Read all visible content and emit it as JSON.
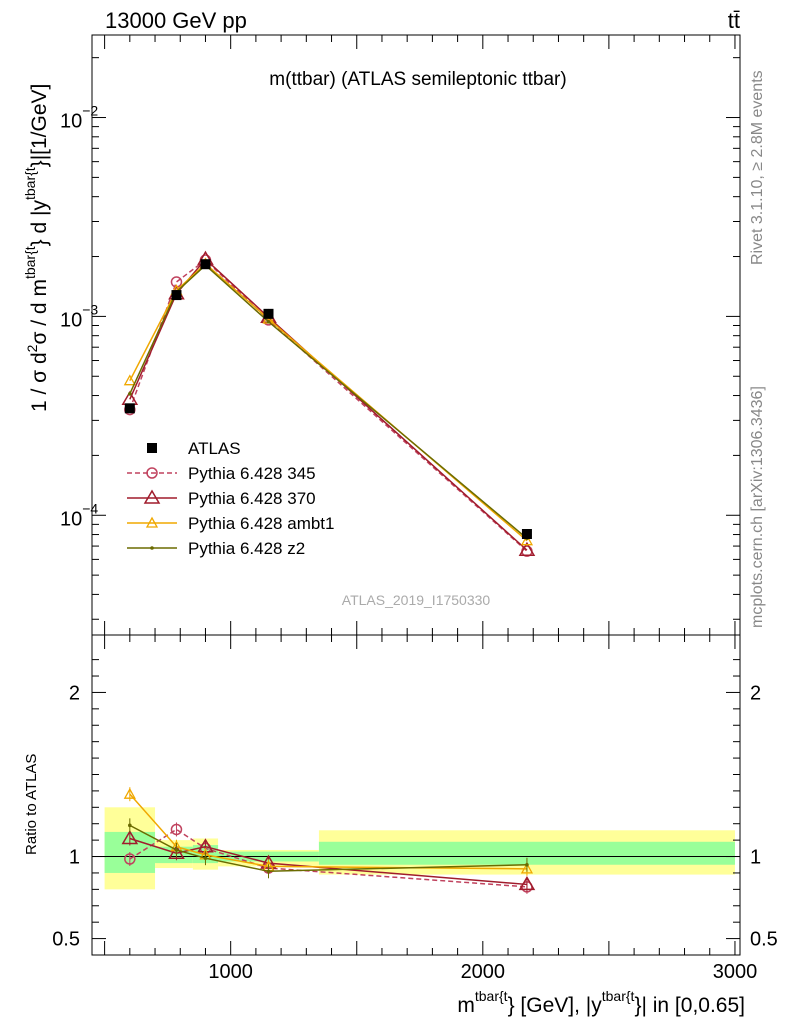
{
  "header": {
    "left": "13000 GeV pp",
    "right": "tt̄"
  },
  "side_text": {
    "rivet": "Rivet 3.1.10, ≥ 2.8M events",
    "mcplots": "mcplots.cern.ch [arXiv:1306.3436]"
  },
  "chart_data": [
    {
      "type": "line",
      "panel": "main",
      "title": "m(ttbar) (ATLAS semileptonic ttbar)",
      "watermark": "ATLAS_2019_I1750330",
      "ylabel_parts": [
        "1 / σ d",
        "2",
        "σ / d m",
        "tbar{t",
        "} d |y",
        "tbar{t",
        "}|[1/GeV]"
      ],
      "yscale": "log",
      "ylim": [
        2.5e-05,
        0.026
      ],
      "xlim": [
        450,
        3020
      ],
      "ytick_labels": [
        {
          "label": "10",
          "exp": "−4",
          "value": 0.0001
        },
        {
          "label": "10",
          "exp": "−3",
          "value": 0.001
        },
        {
          "label": "10",
          "exp": "−2",
          "value": 0.01
        }
      ],
      "legend_position": "middle-left",
      "x": [
        600,
        785,
        900,
        1150,
        2175
      ],
      "series": [
        {
          "name": "ATLAS",
          "color": "#000000",
          "marker": "filled-square",
          "values": [
            0.000345,
            0.00128,
            0.00183,
            0.00103,
            8.05e-05
          ]
        },
        {
          "name": "Pythia 6.428 345",
          "color": "#c0425e",
          "marker": "open-circle",
          "dash": true,
          "values": [
            0.00034,
            0.00149,
            0.00192,
            0.00096,
            6.6e-05
          ]
        },
        {
          "name": "Pythia 6.428 370",
          "color": "#a01c2c",
          "marker": "open-triangle",
          "values": [
            0.000383,
            0.0013,
            0.00194,
            0.00099,
            6.67e-05
          ]
        },
        {
          "name": "Pythia 6.428 ambt1",
          "color": "#f0a800",
          "marker": "open-triangle-small",
          "values": [
            0.000475,
            0.00135,
            0.00184,
            0.00097,
            7.45e-05
          ]
        },
        {
          "name": "Pythia 6.428 z2",
          "color": "#6b6b00",
          "marker": "dot",
          "values": [
            0.000408,
            0.00133,
            0.00181,
            0.00094,
            7.65e-05
          ]
        }
      ]
    },
    {
      "type": "line",
      "panel": "ratio",
      "ylabel": "Ratio to ATLAS",
      "xlabel_parts": [
        "m",
        "tbar{t",
        "} [GeV], |y",
        "tbar{t",
        "}| in [0,0.65]"
      ],
      "ylim": [
        0.4,
        2.35
      ],
      "xlim": [
        450,
        3020
      ],
      "ytick_labels": [
        {
          "label": "0.5",
          "value": 0.5
        },
        {
          "label": "1",
          "value": 1
        },
        {
          "label": "2",
          "value": 2
        }
      ],
      "xtick_labels": [
        {
          "label": "1000",
          "value": 1000
        },
        {
          "label": "2000",
          "value": 2000
        },
        {
          "label": "3000",
          "value": 3000
        }
      ],
      "bands": [
        {
          "x0": 500,
          "x1": 700,
          "green": [
            0.9,
            1.15
          ],
          "yellow": [
            0.8,
            1.3
          ]
        },
        {
          "x0": 700,
          "x1": 850,
          "green": [
            0.96,
            1.06
          ],
          "yellow": [
            0.93,
            1.1
          ]
        },
        {
          "x0": 850,
          "x1": 950,
          "green": [
            0.96,
            1.07
          ],
          "yellow": [
            0.92,
            1.11
          ]
        },
        {
          "x0": 950,
          "x1": 1350,
          "green": [
            0.97,
            1.03
          ],
          "yellow": [
            0.94,
            1.04
          ]
        },
        {
          "x0": 1350,
          "x1": 3000,
          "green": [
            0.95,
            1.09
          ],
          "yellow": [
            0.89,
            1.16
          ]
        }
      ],
      "x": [
        600,
        785,
        900,
        1150,
        2175
      ],
      "series": [
        {
          "name": "Pythia 6.428 345",
          "values": [
            0.985,
            1.165,
            1.05,
            0.93,
            0.815
          ]
        },
        {
          "name": "Pythia 6.428 370",
          "values": [
            1.11,
            1.02,
            1.06,
            0.96,
            0.83
          ]
        },
        {
          "name": "Pythia 6.428 ambt1",
          "values": [
            1.38,
            1.06,
            1.01,
            0.94,
            0.925
          ]
        },
        {
          "name": "Pythia 6.428 z2",
          "values": [
            1.19,
            1.04,
            0.99,
            0.91,
            0.95
          ]
        }
      ]
    }
  ]
}
